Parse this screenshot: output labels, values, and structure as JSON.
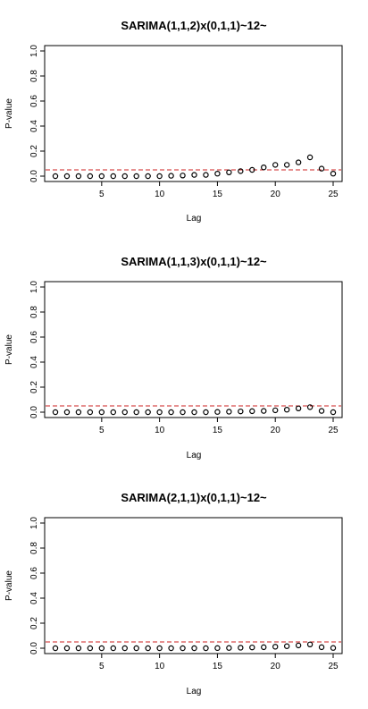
{
  "chart_data": [
    {
      "type": "scatter",
      "title": "SARIMA(1,1,2)x(0,1,1)~12~",
      "xlabel": "Lag",
      "ylabel": "P-value",
      "xlim": [
        1,
        25
      ],
      "ylim": [
        0,
        1
      ],
      "xticks": [
        "5",
        "10",
        "15",
        "20",
        "25"
      ],
      "yticks": [
        "0.0",
        "0.2",
        "0.4",
        "0.6",
        "0.8",
        "1.0"
      ],
      "reference_line": {
        "y": 0.05,
        "style": "dashed",
        "color": "#cc2222"
      },
      "series": [
        {
          "x": [
            1,
            2,
            3,
            4,
            5,
            6,
            7,
            8,
            9,
            10,
            11,
            12,
            13,
            14,
            15,
            16,
            17,
            18,
            19,
            20,
            21,
            22,
            23,
            24,
            25
          ],
          "values": [
            0.0,
            0.0,
            0.0,
            0.0,
            0.0,
            0.0,
            0.0,
            0.0,
            0.0,
            0.0,
            0.003,
            0.005,
            0.01,
            0.01,
            0.02,
            0.03,
            0.04,
            0.05,
            0.07,
            0.09,
            0.09,
            0.11,
            0.15,
            0.06,
            0.02
          ]
        }
      ]
    },
    {
      "type": "scatter",
      "title": "SARIMA(1,1,3)x(0,1,1)~12~",
      "xlabel": "Lag",
      "ylabel": "P-value",
      "xlim": [
        1,
        25
      ],
      "ylim": [
        0,
        1
      ],
      "xticks": [
        "5",
        "10",
        "15",
        "20",
        "25"
      ],
      "yticks": [
        "0.0",
        "0.2",
        "0.4",
        "0.6",
        "0.8",
        "1.0"
      ],
      "reference_line": {
        "y": 0.05,
        "style": "dashed",
        "color": "#cc2222"
      },
      "series": [
        {
          "x": [
            1,
            2,
            3,
            4,
            5,
            6,
            7,
            8,
            9,
            10,
            11,
            12,
            13,
            14,
            15,
            16,
            17,
            18,
            19,
            20,
            21,
            22,
            23,
            24,
            25
          ],
          "values": [
            0.0,
            0.0,
            0.0,
            0.0,
            0.0,
            0.0,
            0.0,
            0.0,
            0.0,
            0.0,
            0.0,
            0.0,
            0.0,
            0.0,
            0.002,
            0.004,
            0.006,
            0.008,
            0.01,
            0.015,
            0.02,
            0.03,
            0.04,
            0.01,
            0.0
          ]
        }
      ]
    },
    {
      "type": "scatter",
      "title": "SARIMA(2,1,1)x(0,1,1)~12~",
      "xlabel": "Lag",
      "ylabel": "P-value",
      "xlim": [
        1,
        25
      ],
      "ylim": [
        0,
        1
      ],
      "xticks": [
        "5",
        "10",
        "15",
        "20",
        "25"
      ],
      "yticks": [
        "0.0",
        "0.2",
        "0.4",
        "0.6",
        "0.8",
        "1.0"
      ],
      "reference_line": {
        "y": 0.05,
        "style": "dashed",
        "color": "#cc2222"
      },
      "series": [
        {
          "x": [
            1,
            2,
            3,
            4,
            5,
            6,
            7,
            8,
            9,
            10,
            11,
            12,
            13,
            14,
            15,
            16,
            17,
            18,
            19,
            20,
            21,
            22,
            23,
            24,
            25
          ],
          "values": [
            0.0,
            0.0,
            0.0,
            0.0,
            0.0,
            0.0,
            0.0,
            0.0,
            0.0,
            0.0,
            0.0,
            0.0,
            0.0,
            0.0,
            0.001,
            0.002,
            0.004,
            0.006,
            0.008,
            0.012,
            0.016,
            0.022,
            0.03,
            0.008,
            0.002
          ]
        }
      ]
    }
  ]
}
